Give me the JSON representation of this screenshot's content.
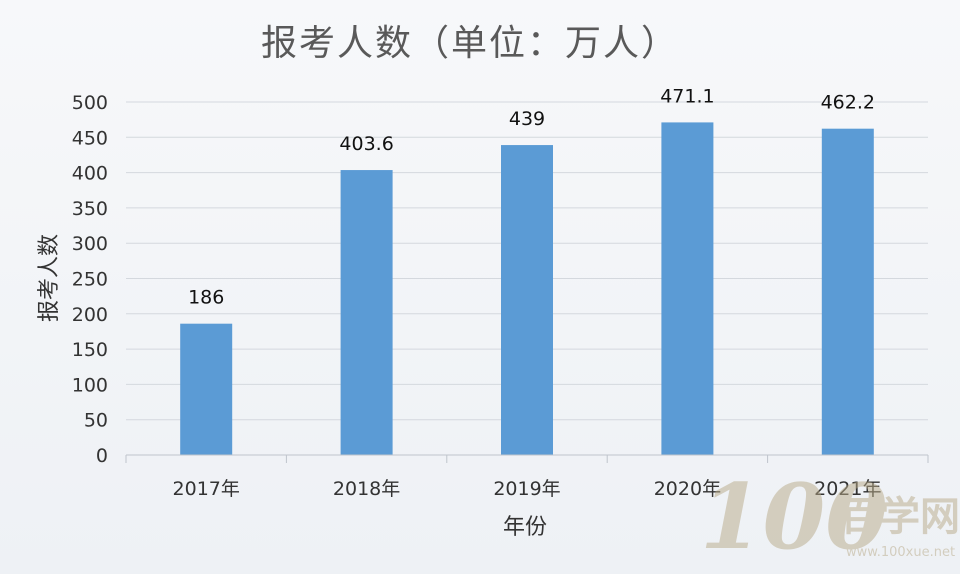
{
  "chart_data": {
    "type": "bar",
    "title": "报考人数（单位：万人）",
    "xlabel": "年份",
    "ylabel": "报考人数",
    "categories": [
      "2017年",
      "2018年",
      "2019年",
      "2020年",
      "2021年"
    ],
    "values": [
      186,
      403.6,
      439,
      471.1,
      462.2
    ],
    "data_labels": [
      "186",
      "403.6",
      "439",
      "471.1",
      "462.2"
    ],
    "ylim": [
      0,
      500
    ],
    "yticks": [
      0,
      50,
      100,
      150,
      200,
      250,
      300,
      350,
      400,
      450,
      500
    ],
    "grid": true,
    "legend": "none",
    "bar_color": "#5b9bd5"
  },
  "watermark": {
    "logo": "100百学网",
    "url": "www.100xue.net",
    "color": "#b8aa88"
  }
}
